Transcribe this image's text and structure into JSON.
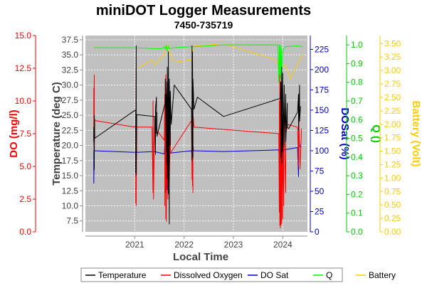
{
  "chart_data": {
    "type": "line",
    "title": "miniDOT Logger Measurements",
    "subtitle": "7450-735719",
    "xlabel": "Local Time",
    "x_ticks": [
      "2021",
      "2022",
      "2023",
      "2024"
    ],
    "x_tick_values": [
      2021.0,
      2022.0,
      2023.0,
      2024.0
    ],
    "xlim": [
      2020.0,
      2024.5
    ],
    "grid": true,
    "plot_background": "#c0c0c0",
    "legend_position": "bottom",
    "axes": [
      {
        "id": "do",
        "label": "DO (mg/l)",
        "color": "#ff0000",
        "side": "left",
        "order": 0,
        "ylim": [
          0,
          15
        ],
        "ticks": [
          "0.0",
          "2.5",
          "5.0",
          "7.5",
          "10.0",
          "12.5",
          "15.0"
        ],
        "tick_values": [
          0,
          2.5,
          5,
          7.5,
          10,
          12.5,
          15
        ]
      },
      {
        "id": "temp",
        "label": "Temperature (deg C)",
        "color": "#404040",
        "side": "left",
        "order": 1,
        "ylim": [
          5.7,
          38.2
        ],
        "ticks": [
          "7.5",
          "10.0",
          "12.5",
          "15.0",
          "17.5",
          "20.0",
          "22.5",
          "25.0",
          "27.5",
          "30.0",
          "32.5",
          "35.0",
          "37.5"
        ],
        "tick_values": [
          7.5,
          10,
          12.5,
          15,
          17.5,
          20,
          22.5,
          25,
          27.5,
          30,
          32.5,
          35,
          37.5
        ]
      },
      {
        "id": "dosat",
        "label": "DOSat (%)",
        "color": "#0000cc",
        "side": "right",
        "order": 0,
        "ylim": [
          0,
          242
        ],
        "ticks": [
          "0",
          "25",
          "50",
          "75",
          "100",
          "125",
          "150",
          "175",
          "200",
          "225"
        ],
        "tick_values": [
          0,
          25,
          50,
          75,
          100,
          125,
          150,
          175,
          200,
          225
        ]
      },
      {
        "id": "q",
        "label": "Q ()",
        "color": "#00cc00",
        "side": "right",
        "order": 1,
        "ylim": [
          0,
          1.05
        ],
        "ticks": [
          "0.0",
          "0.1",
          "0.2",
          "0.3",
          "0.4",
          "0.5",
          "0.6",
          "0.7",
          "0.8",
          "0.9",
          "1.0"
        ],
        "tick_values": [
          0,
          0.1,
          0.2,
          0.3,
          0.4,
          0.5,
          0.6,
          0.7,
          0.8,
          0.9,
          1.0
        ]
      },
      {
        "id": "bat",
        "label": "Battery (Volt)",
        "color": "#ffcc00",
        "side": "right",
        "order": 2,
        "ylim": [
          0,
          3.65
        ],
        "ticks": [
          "0.00",
          "0.25",
          "0.50",
          "0.75",
          "1.00",
          "1.25",
          "1.50",
          "1.75",
          "2.00",
          "2.25",
          "2.50",
          "2.75",
          "3.00",
          "3.25",
          "3.50"
        ],
        "tick_values": [
          0,
          0.25,
          0.5,
          0.75,
          1,
          1.25,
          1.5,
          1.75,
          2,
          2.25,
          2.5,
          2.75,
          3,
          3.25,
          3.5
        ]
      }
    ],
    "series": [
      {
        "name": "Temperature",
        "axis": "temp",
        "color": "#000000",
        "x": [
          2020.17,
          2020.17,
          2020.18,
          2020.18,
          2020.19,
          2021.0,
          2021.02,
          2021.02,
          2021.03,
          2021.03,
          2021.04,
          2021.4,
          2021.42,
          2021.42,
          2021.44,
          2021.44,
          2021.45,
          2021.45,
          2021.6,
          2021.62,
          2021.62,
          2021.64,
          2021.64,
          2021.65,
          2021.65,
          2021.66,
          2021.66,
          2021.68,
          2021.68,
          2021.7,
          2021.7,
          2021.72,
          2021.72,
          2021.74,
          2021.8,
          2022.15,
          2022.16,
          2022.16,
          2022.17,
          2022.17,
          2022.18,
          2022.18,
          2022.2,
          2022.27,
          2022.8,
          2023.95,
          2023.96,
          2023.96,
          2023.98,
          2023.98,
          2024.0,
          2024.0,
          2024.03,
          2024.03,
          2024.06,
          2024.06,
          2024.09,
          2024.09,
          2024.12,
          2024.3,
          2024.32,
          2024.32,
          2024.34,
          2024.34,
          2024.36
        ],
        "y": [
          20.5,
          23.0,
          16.0,
          25.0,
          21.2,
          25.8,
          25.8,
          15.5,
          36.5,
          15.0,
          25.1,
          24.8,
          18.5,
          26.0,
          28.0,
          22.0,
          25.5,
          21.5,
          26.5,
          27.0,
          31.0,
          19.0,
          28.5,
          17.0,
          30.5,
          14.5,
          33.0,
          12.0,
          35.5,
          7.0,
          31.0,
          20.0,
          29.0,
          23.5,
          30.0,
          26.0,
          17.5,
          36.5,
          19.5,
          35.5,
          18.0,
          31.0,
          26.0,
          28.0,
          24.8,
          27.8,
          30.5,
          18.0,
          33.0,
          17.0,
          32.0,
          19.0,
          30.0,
          20.0,
          28.5,
          20.5,
          27.0,
          23.0,
          22.8,
          25.5,
          28.5,
          22.5,
          30.0,
          24.0,
          26.5
        ]
      },
      {
        "name": "Dissolved Oxygen",
        "axis": "do",
        "color": "#ff0000",
        "x": [
          2020.17,
          2020.17,
          2020.18,
          2020.18,
          2020.19,
          2020.2,
          2021.0,
          2021.02,
          2021.02,
          2021.03,
          2021.03,
          2021.04,
          2021.35,
          2021.37,
          2021.37,
          2021.38,
          2021.4,
          2021.6,
          2021.61,
          2021.61,
          2021.62,
          2021.62,
          2021.63,
          2021.63,
          2021.64,
          2021.64,
          2021.65,
          2021.65,
          2021.66,
          2021.66,
          2021.67,
          2021.67,
          2021.7,
          2021.7,
          2021.72,
          2021.72,
          2022.15,
          2022.16,
          2022.16,
          2022.17,
          2022.17,
          2022.18,
          2022.18,
          2022.2,
          2023.92,
          2023.93,
          2023.93,
          2023.94,
          2023.94,
          2023.95,
          2023.95,
          2023.96,
          2023.96,
          2023.97,
          2023.97,
          2023.98,
          2023.98,
          2024.0,
          2024.0,
          2024.02,
          2024.02,
          2024.06,
          2024.06,
          2024.1,
          2024.3,
          2024.32,
          2024.32,
          2024.35,
          2024.38
        ],
        "y": [
          11.0,
          7.0,
          12.0,
          6.0,
          8.6,
          8.5,
          8.0,
          8.1,
          2.2,
          12.5,
          2.0,
          8.0,
          8.0,
          3.0,
          10.0,
          2.5,
          8.0,
          7.0,
          10.5,
          2.0,
          11.5,
          3.0,
          12.0,
          1.0,
          11.0,
          0.8,
          10.0,
          3.5,
          9.0,
          4.5,
          10.5,
          2.5,
          8.0,
          4.0,
          7.5,
          6.0,
          8.5,
          4.0,
          10.0,
          3.5,
          11.0,
          3.0,
          9.0,
          8.0,
          7.5,
          1.5,
          10.0,
          0.5,
          12.0,
          0.3,
          11.5,
          0.5,
          10.0,
          0.8,
          9.5,
          0.6,
          11.0,
          1.0,
          9.0,
          2.0,
          8.5,
          3.0,
          7.5,
          8.2,
          8.0,
          5.0,
          9.5,
          4.8,
          7.9
        ]
      },
      {
        "name": "DO Sat",
        "axis": "dosat",
        "color": "#0000cc",
        "x": [
          2020.17,
          2020.17,
          2020.18,
          2021.0,
          2021.02,
          2021.02,
          2021.03,
          2021.04,
          2021.4,
          2021.6,
          2021.62,
          2021.62,
          2021.64,
          2021.64,
          2021.66,
          2021.66,
          2021.68,
          2021.7,
          2022.15,
          2022.17,
          2022.17,
          2022.19,
          2022.8,
          2023.92,
          2023.94,
          2023.94,
          2023.96,
          2023.96,
          2023.98,
          2023.98,
          2024.0,
          2024.0,
          2024.03,
          2024.3,
          2024.32,
          2024.32,
          2024.36
        ],
        "y": [
          100,
          60,
          100,
          98,
          98,
          70,
          110,
          98,
          99,
          96,
          120,
          60,
          115,
          48,
          110,
          52,
          95,
          97,
          100,
          86,
          112,
          100,
          99,
          101,
          60,
          110,
          62,
          108,
          70,
          104,
          75,
          102,
          101,
          104,
          68,
          112,
          104
        ]
      },
      {
        "name": "Q",
        "axis": "q",
        "color": "#00ff00",
        "x": [
          2020.17,
          2021.0,
          2021.4,
          2021.55,
          2021.6,
          2021.62,
          2021.64,
          2021.66,
          2021.68,
          2021.7,
          2021.8,
          2022.15,
          2022.2,
          2022.8,
          2023.9,
          2023.92,
          2023.93,
          2023.94,
          2023.95,
          2023.96,
          2023.97,
          2023.98,
          2024.0,
          2024.02,
          2024.05,
          2024.3,
          2024.4
        ],
        "y": [
          0.985,
          0.985,
          0.98,
          0.98,
          0.99,
          0.975,
          1.0,
          0.965,
          0.995,
          0.98,
          0.985,
          0.99,
          0.99,
          1.0,
          1.0,
          0.8,
          1.0,
          0.78,
          1.0,
          0.82,
          0.99,
          0.85,
          0.96,
          0.98,
          0.99,
          0.995,
          0.99
        ]
      },
      {
        "name": "Battery",
        "axis": "bat",
        "color": "#ffcc00",
        "x": [
          2021.07,
          2021.35,
          2021.4,
          2021.6,
          2021.64,
          2021.66,
          2021.68,
          2021.72,
          2021.8,
          2022.15,
          2022.2,
          2022.8,
          2023.85,
          2023.95,
          2024.05,
          2024.15,
          2024.4
        ],
        "y": [
          3.05,
          3.2,
          3.1,
          3.3,
          3.48,
          3.4,
          3.48,
          3.3,
          3.15,
          3.2,
          3.45,
          3.5,
          3.2,
          3.05,
          3.1,
          2.85,
          3.3
        ]
      }
    ]
  }
}
